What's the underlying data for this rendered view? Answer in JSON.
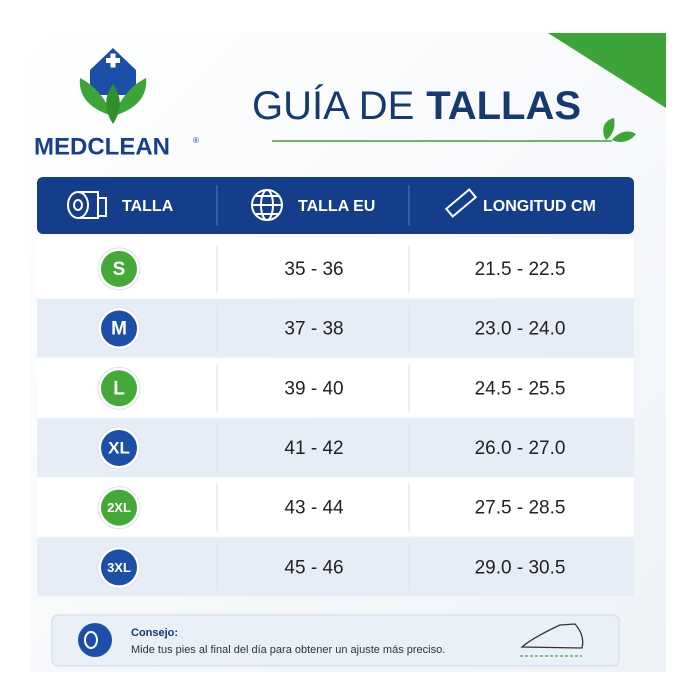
{
  "logo": {
    "brand": "MEDCLEAN",
    "mark": "®"
  },
  "header": {
    "title_light": "GUÍA DE",
    "title_bold": "TALLAS"
  },
  "table": {
    "headers": [
      "TALLA",
      "TALLA EU",
      "LONGITUD CM"
    ],
    "rows": [
      [
        "S",
        "35 - 36",
        "21.5 - 22.5"
      ],
      [
        "M",
        "37 - 38",
        "23.0 - 24.0"
      ],
      [
        "L",
        "39 - 40",
        "24.5 - 25.5"
      ],
      [
        "XL",
        "41 - 42",
        "26.0 - 27.0"
      ],
      [
        "2XL",
        "43 - 44",
        "27.5 - 28.5"
      ],
      [
        "3XL",
        "45 - 46",
        "29.0 - 30.5"
      ]
    ]
  },
  "tip": {
    "label": "Consejo:",
    "text": "Mide tus pies al final del día para obtener un ajuste más preciso."
  }
}
